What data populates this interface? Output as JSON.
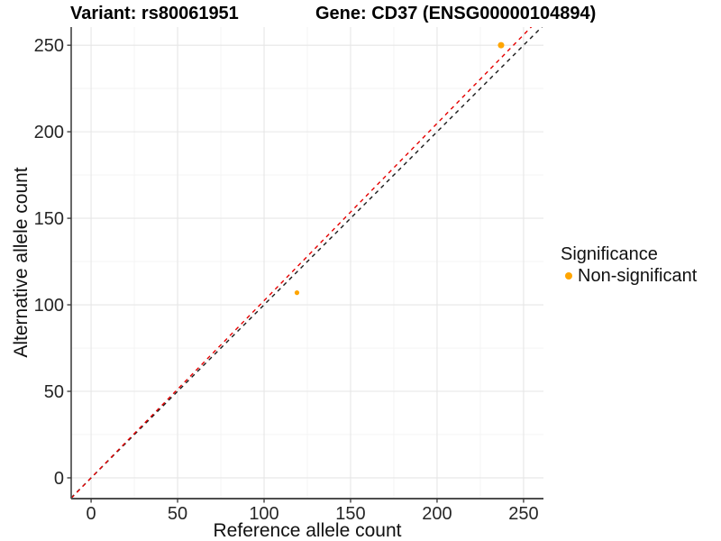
{
  "header": {
    "title_left": "Variant: rs80061951",
    "title_right": "Gene: CD37 (ENSG00000104894)"
  },
  "chart_data": {
    "type": "scatter",
    "title_left": "Variant: rs80061951",
    "title_right": "Gene: CD37 (ENSG00000104894)",
    "xlabel": "Reference allele count",
    "ylabel": "Alternative allele count",
    "xlim": [
      -11.5,
      261.5
    ],
    "ylim": [
      -12,
      260.5
    ],
    "x_ticks": [
      0,
      50,
      100,
      150,
      200,
      250
    ],
    "y_ticks": [
      0,
      50,
      100,
      150,
      200,
      250
    ],
    "x_minor_ticks": [
      25,
      75,
      125,
      175,
      225
    ],
    "y_minor_ticks": [
      25,
      75,
      125,
      175,
      225
    ],
    "grid": {
      "major_color": "#E6E6E6",
      "minor_color": "#F3F3F3"
    },
    "axis_color": "#4D4D4D",
    "tick_label_color": "#262626",
    "point_color": "#FFA500",
    "points": [
      {
        "x": 119,
        "y": 107,
        "r": 2.6,
        "series": "Non-significant"
      },
      {
        "x": 237,
        "y": 250,
        "r": 3.5,
        "series": "Non-significant"
      }
    ],
    "lines": [
      {
        "name": "identity-line",
        "slope": 1.0,
        "intercept": 0,
        "color": "#1A1A1A",
        "dash": "4.5 4.5"
      },
      {
        "name": "fit-line",
        "slope": 1.024,
        "intercept": 0,
        "color": "#E50000",
        "dash": "4.5 4.5"
      }
    ],
    "legend": {
      "title": "Significance",
      "position": "right",
      "items": [
        {
          "label": "Non-significant",
          "color": "#FFA500"
        }
      ]
    }
  }
}
